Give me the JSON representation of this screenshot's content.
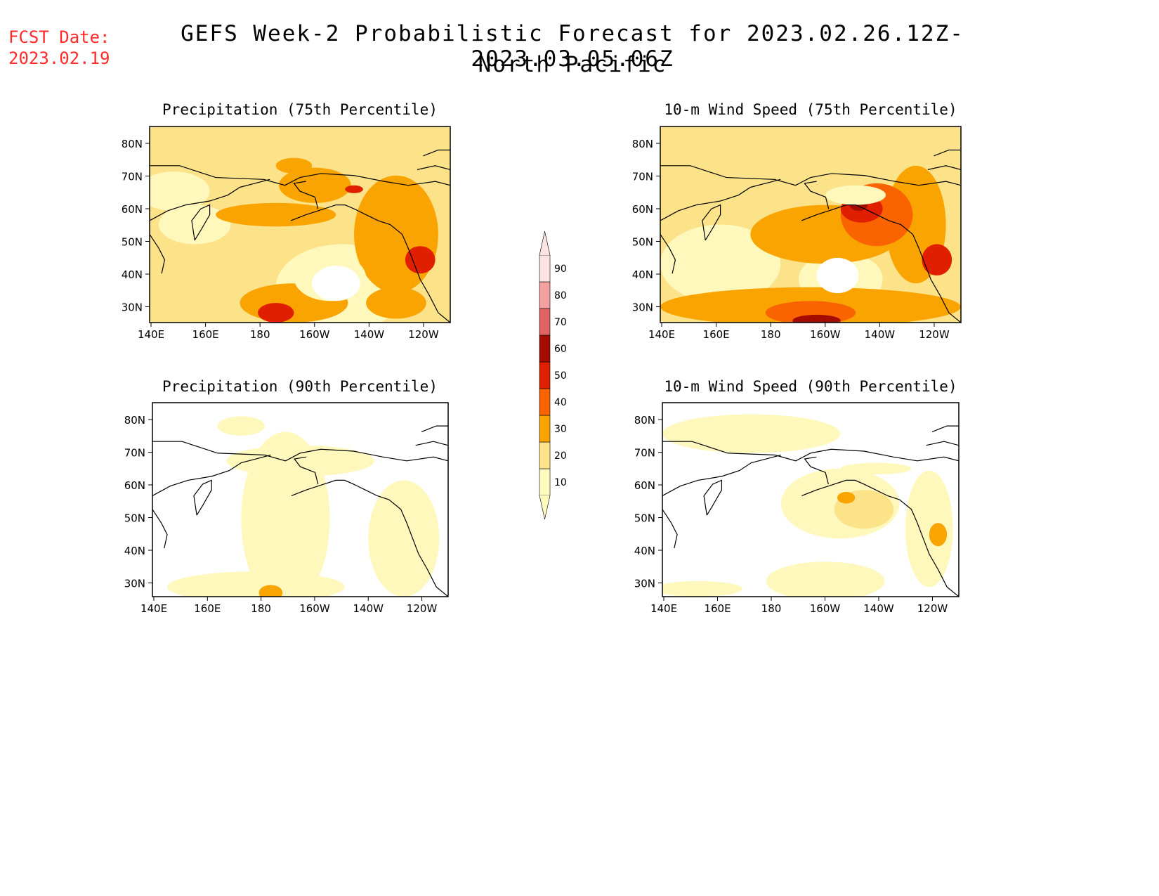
{
  "header": {
    "fcst_label": "FCST Date:",
    "fcst_date": "2023.02.19",
    "title": "GEFS Week-2 Probabilistic Forecast for 2023.02.26.12Z-2023.03.05.06Z",
    "region": "North Pacific"
  },
  "axes": {
    "lon_labels": [
      "140E",
      "160E",
      "180",
      "160W",
      "140W",
      "120W"
    ],
    "lat_labels": [
      "80N",
      "70N",
      "60N",
      "50N",
      "40N",
      "30N"
    ]
  },
  "colorbar": {
    "levels": [
      10,
      20,
      30,
      40,
      50,
      60,
      70,
      80,
      90
    ],
    "colors": [
      "#fffbbe",
      "#fde38a",
      "#f9a400",
      "#f96400",
      "#e01e00",
      "#a50c00",
      "#e06464",
      "#f5a0a0",
      "#fde4e4"
    ]
  },
  "panels": [
    {
      "title": "Precipitation (75th Percentile)",
      "colors_used": [
        "#fff8bd",
        "#fce289",
        "#f9a400",
        "#e01e00"
      ]
    },
    {
      "title": "10-m Wind Speed (75th Percentile)",
      "colors_used": [
        "#fff8bd",
        "#fce289",
        "#f9a400",
        "#f96400",
        "#e01e00",
        "#a50c00"
      ]
    },
    {
      "title": "Precipitation (90th Percentile)",
      "colors_used": [
        "#fff8bd",
        "#fce289",
        "#f9a400"
      ]
    },
    {
      "title": "10-m Wind Speed (90th Percentile)",
      "colors_used": [
        "#fff8bd",
        "#fce289",
        "#f9a400",
        "#e01e00"
      ]
    }
  ]
}
